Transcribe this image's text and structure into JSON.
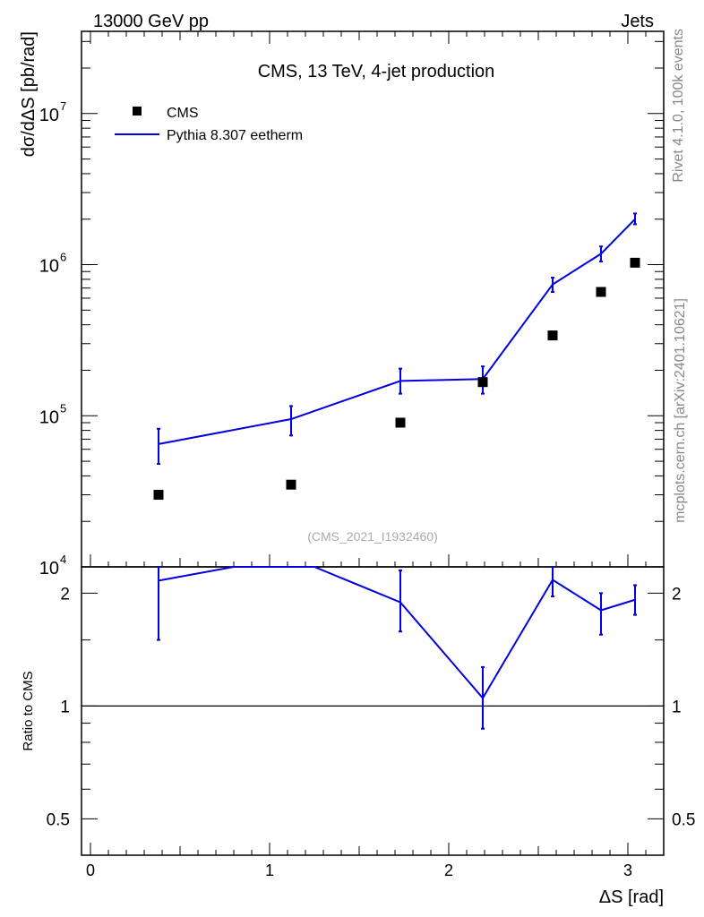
{
  "header": {
    "left": "13000 GeV pp",
    "right": "Jets"
  },
  "side_labels": {
    "rivet": "Rivet 4.1.0,  100k events",
    "mcplots": "mcplots.cern.ch [arXiv:2401.10621]"
  },
  "chart_data": {
    "type": "line",
    "title": "CMS, 13 TeV, 4-jet production",
    "analysis_tag": "(CMS_2021_I1932460)",
    "xlabel": "ΔS [rad]",
    "ylabel_main": "dσ/dΔS [pb/rad]",
    "ylabel_ratio": "Ratio to CMS",
    "xlim": [
      -0.05,
      3.2
    ],
    "x_ticks": [
      "0",
      "1",
      "2",
      "3"
    ],
    "main_panel": {
      "y_scale": "log",
      "ylim": [
        10000,
        35000000
      ],
      "y_ticks": [
        {
          "base": "10",
          "exp": "4",
          "value": 10000
        },
        {
          "base": "10",
          "exp": "5",
          "value": 100000
        },
        {
          "base": "10",
          "exp": "6",
          "value": 1000000
        },
        {
          "base": "10",
          "exp": "7",
          "value": 10000000
        }
      ]
    },
    "ratio_panel": {
      "y_scale": "log",
      "ylim": [
        0.4,
        2.35
      ],
      "y_ticks": [
        "0.5",
        "1",
        "2"
      ],
      "reference_line": 1
    },
    "legend": {
      "placement": "top-left",
      "entries": [
        "CMS",
        "Pythia 8.307 eetherm"
      ]
    },
    "colors": {
      "data": "#000000",
      "mc": "#0000e0"
    },
    "series": [
      {
        "name": "CMS",
        "style": "markers",
        "x": [
          0.38,
          1.12,
          1.73,
          2.19,
          2.58,
          2.85,
          3.04
        ],
        "y": [
          30000,
          35000,
          90000,
          167000,
          340000,
          660000,
          1030000
        ]
      },
      {
        "name": "Pythia 8.307 eetherm",
        "style": "line",
        "x": [
          0.38,
          1.12,
          1.73,
          2.19,
          2.58,
          2.85,
          3.04
        ],
        "y": [
          65000,
          95000,
          170000,
          175000,
          740000,
          1180000,
          2000000
        ],
        "yerr_low": [
          48000,
          74000,
          140000,
          140000,
          660000,
          1050000,
          1850000
        ],
        "yerr_high": [
          82000,
          116000,
          205000,
          212000,
          820000,
          1320000,
          2180000
        ]
      }
    ],
    "ratio_series": {
      "name": "Pythia 8.307 eetherm / CMS",
      "x": [
        0.38,
        0.8,
        1.25,
        1.73,
        2.19,
        2.58,
        2.85,
        3.04
      ],
      "y": [
        2.16,
        2.35,
        2.35,
        1.89,
        1.05,
        2.17,
        1.8,
        1.92
      ],
      "err_x": [
        0.38,
        1.73,
        2.19,
        2.58,
        2.85,
        3.04
      ],
      "err_low": [
        1.5,
        1.58,
        0.87,
        1.96,
        1.55,
        1.75
      ],
      "err_high": [
        2.4,
        2.3,
        1.27,
        2.38,
        2.0,
        2.1
      ]
    }
  }
}
